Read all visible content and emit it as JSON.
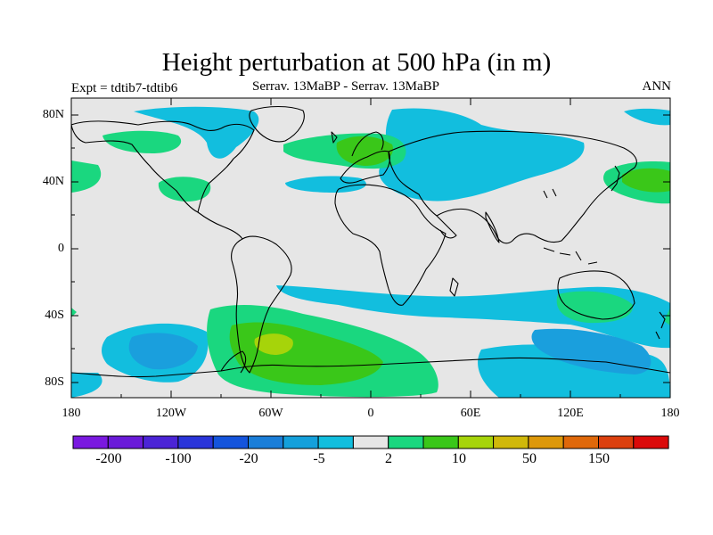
{
  "title": "Height perturbation at 500 hPa (in m)",
  "subtitle": {
    "left": "Expt = tdtib7-tdtib6",
    "center": "Serrav.   13MaBP - Serrav.   13MaBP",
    "right": "ANN"
  },
  "axes": {
    "lat_labels": [
      "80N",
      "40N",
      "0",
      "40S",
      "80S"
    ],
    "lon_labels": [
      "180",
      "120W",
      "60W",
      "0",
      "60E",
      "120E",
      "180"
    ]
  },
  "colorbar": {
    "labels": [
      "-200",
      "-100",
      "-20",
      "-5",
      "2",
      "10",
      "50",
      "150"
    ],
    "colors": [
      "#7a19e0",
      "#6a1ad8",
      "#4b24d6",
      "#2a35d9",
      "#1454dc",
      "#1a7ed8",
      "#14a0db",
      "#12bede",
      "#e6e6e6",
      "#1ad77f",
      "#3ac719",
      "#a6d40a",
      "#d0b80a",
      "#dd980a",
      "#df680a",
      "#dc400e",
      "#db0a0a"
    ]
  },
  "map": {
    "background_color": "#e6e6e6",
    "layers": [
      {
        "name": "contour-light-blue",
        "color": "#12bede"
      },
      {
        "name": "contour-mid-blue",
        "color": "#1a9fdd"
      },
      {
        "name": "contour-green",
        "color": "#1ad77f"
      },
      {
        "name": "contour-bright-green",
        "color": "#3ac719"
      },
      {
        "name": "contour-yellow-green",
        "color": "#a6d40a"
      }
    ]
  }
}
